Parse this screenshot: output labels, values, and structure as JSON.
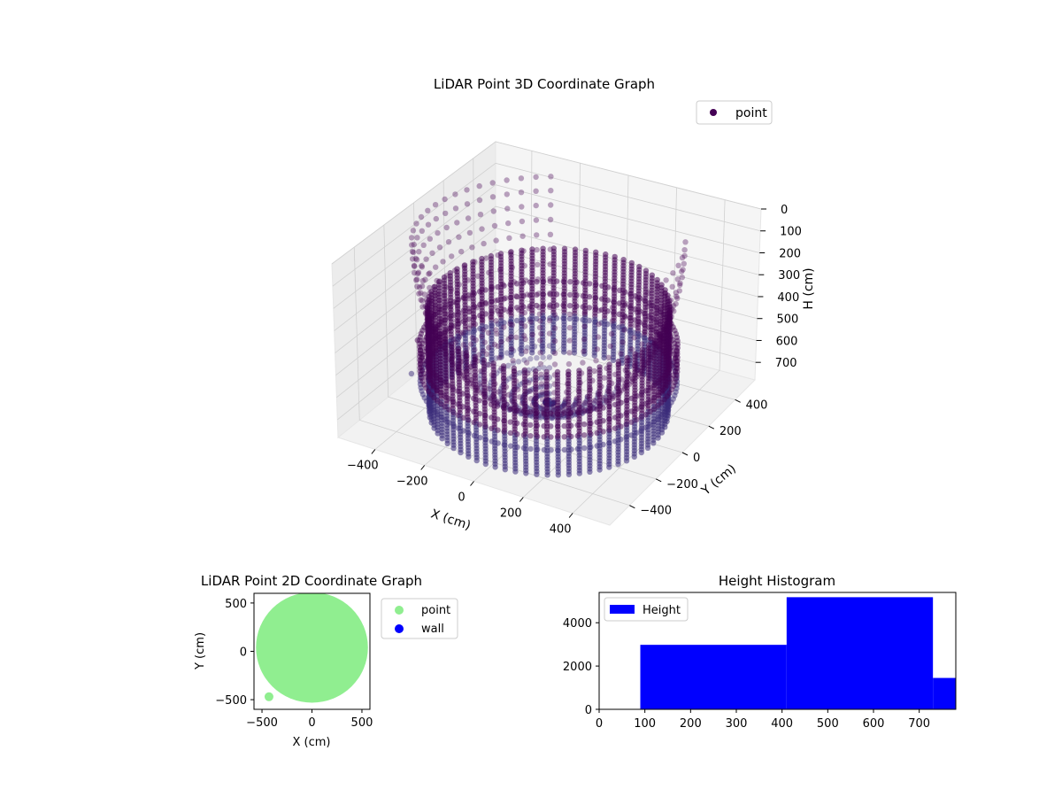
{
  "chart_data": [
    {
      "type": "scatter",
      "projection": "3d",
      "title": "LiDAR Point 3D Coordinate Graph",
      "xlabel": "X (cm)",
      "ylabel": "Y (cm)",
      "zlabel": "H (cm)",
      "xlim": [
        -550,
        550
      ],
      "ylim": [
        -550,
        550
      ],
      "zlim": [
        780,
        0
      ],
      "xticks": [
        "−400",
        "−200",
        "0",
        "200",
        "400"
      ],
      "yticks": [
        "−400",
        "−200",
        "0",
        "200",
        "400"
      ],
      "zticks": [
        "0",
        "100",
        "200",
        "300",
        "400",
        "500",
        "600",
        "700"
      ],
      "zaxis_inverted": true,
      "grid": true,
      "legend": {
        "position": "top-right",
        "entries": [
          "point"
        ]
      },
      "series": [
        {
          "name": "point",
          "color": "#440154",
          "structure": [
            {
              "shape": "bowl",
              "rim_radius": 480,
              "rim_height": 0,
              "bottom_height": 730,
              "angle_range_deg": [
                120,
                390
              ],
              "rings": 18
            },
            {
              "shape": "cylinder",
              "radius": 430,
              "height_range": [
                300,
                780
              ]
            },
            {
              "shape": "bands",
              "radius": 460,
              "heights": [
                470,
                530,
                580,
                640
              ]
            }
          ],
          "outliers": [
            {
              "x": -490,
              "y": -90,
              "h": 560
            },
            {
              "x": -500,
              "y": -120,
              "h": 700
            }
          ]
        }
      ]
    },
    {
      "type": "scatter",
      "title": "LiDAR Point 2D Coordinate Graph",
      "xlabel": "X (cm)",
      "ylabel": "Y (cm)",
      "xlim": [
        -580,
        580
      ],
      "ylim": [
        -600,
        600
      ],
      "xticks": [
        "−500",
        "0",
        "500"
      ],
      "yticks": [
        "−500",
        "0",
        "500"
      ],
      "legend": {
        "position": "outside-right",
        "entries": [
          "point",
          "wall"
        ]
      },
      "series": [
        {
          "name": "point",
          "color": "#90ee90",
          "region": "disk",
          "radius": 560,
          "extra_points": [
            {
              "x": -430,
              "y": -470
            }
          ]
        },
        {
          "name": "wall",
          "color": "#0000ff",
          "points": []
        }
      ]
    },
    {
      "type": "bar",
      "title": "Height Histogram",
      "xlim": [
        0,
        780
      ],
      "ylim": [
        0,
        5400
      ],
      "xticks": [
        "0",
        "100",
        "200",
        "300",
        "400",
        "500",
        "600",
        "700"
      ],
      "yticks": [
        "0",
        "2000",
        "4000"
      ],
      "legend": {
        "position": "top-left",
        "entries": [
          "Height"
        ]
      },
      "series": [
        {
          "name": "Height",
          "color": "#0000ff",
          "bins": [
            {
              "from": 90,
              "to": 410,
              "count": 2980
            },
            {
              "from": 410,
              "to": 730,
              "count": 5180
            },
            {
              "from": 730,
              "to": 780,
              "count": 1450
            }
          ]
        }
      ]
    }
  ]
}
